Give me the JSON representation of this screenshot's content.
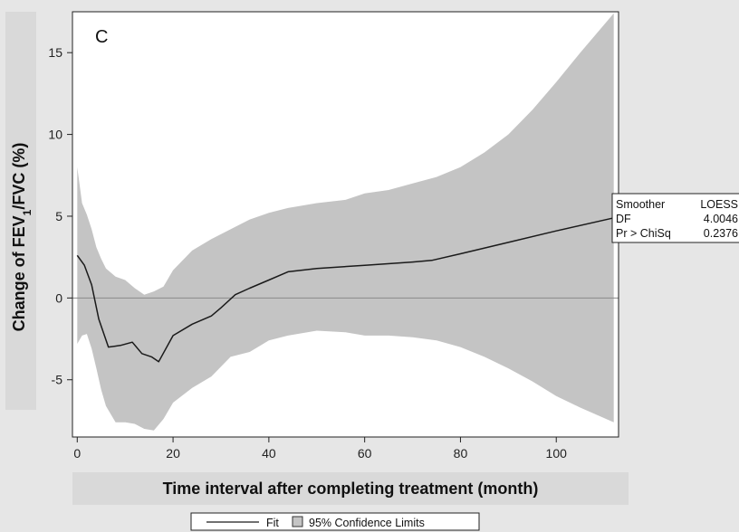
{
  "chart_data": {
    "type": "line",
    "panel_label": "C",
    "xlabel": "Time interval after completing treatment (month)",
    "ylabel_parts": {
      "before": "Change of FEV",
      "sub": "1",
      "after": "/FVC (%)"
    },
    "xlim": [
      -1,
      113
    ],
    "ylim": [
      -8.5,
      17.5
    ],
    "x_ticks": [
      0,
      20,
      40,
      60,
      80,
      100
    ],
    "y_ticks": [
      -5,
      0,
      5,
      10,
      15
    ],
    "reference_line_y": 0,
    "series": [
      {
        "name": "Fit",
        "kind": "line",
        "color": "#1a1a1a",
        "x": [
          0,
          1.5,
          3,
          4.5,
          6.5,
          9,
          11.5,
          13.5,
          15.5,
          17,
          20,
          24,
          28,
          30,
          33,
          36,
          40,
          44,
          50,
          60,
          70,
          74,
          80,
          90,
          100,
          112
        ],
        "y": [
          2.6,
          2.0,
          0.8,
          -1.3,
          -3.0,
          -2.9,
          -2.7,
          -3.4,
          -3.6,
          -3.9,
          -2.3,
          -1.6,
          -1.1,
          -0.6,
          0.2,
          0.6,
          1.1,
          1.6,
          1.8,
          2.0,
          2.2,
          2.3,
          2.7,
          3.4,
          4.1,
          4.9
        ]
      },
      {
        "name": "95% Confidence Limits",
        "kind": "band",
        "color": "#c4c4c4",
        "x": [
          0,
          1,
          2,
          3,
          4,
          5,
          6,
          8,
          10,
          12,
          14,
          16,
          18,
          20,
          24,
          28,
          32,
          36,
          40,
          44,
          50,
          56,
          60,
          65,
          70,
          75,
          80,
          85,
          90,
          95,
          100,
          105,
          112
        ],
        "upper": [
          8.0,
          5.8,
          5.1,
          4.2,
          3.1,
          2.4,
          1.8,
          1.3,
          1.1,
          0.6,
          0.2,
          0.4,
          0.7,
          1.7,
          2.9,
          3.6,
          4.2,
          4.8,
          5.2,
          5.5,
          5.8,
          6.0,
          6.4,
          6.6,
          7.0,
          7.4,
          8.0,
          8.9,
          10.0,
          11.5,
          13.2,
          15.0,
          17.4
        ],
        "lower": [
          -2.8,
          -2.3,
          -2.2,
          -3.1,
          -4.3,
          -5.6,
          -6.6,
          -7.6,
          -7.6,
          -7.7,
          -8.0,
          -8.1,
          -7.4,
          -6.4,
          -5.5,
          -4.8,
          -3.6,
          -3.3,
          -2.6,
          -2.3,
          -2.0,
          -2.1,
          -2.3,
          -2.3,
          -2.4,
          -2.6,
          -3.0,
          -3.6,
          -4.3,
          -5.1,
          -6.0,
          -6.7,
          -7.6
        ]
      }
    ],
    "stats": {
      "rows": [
        {
          "label": "Smoother",
          "value": "LOESS"
        },
        {
          "label": "DF",
          "value": "4.0046"
        },
        {
          "label": "Pr > ChiSq",
          "value": "0.2376"
        }
      ]
    },
    "legend": {
      "position": "bottom",
      "items": [
        {
          "label": "Fit",
          "symbol": "line"
        },
        {
          "label": "95% Confidence Limits",
          "symbol": "box"
        }
      ]
    },
    "colors": {
      "page_background": "#e6e6e6",
      "plot_background": "#ffffff",
      "band": "#c4c4c4",
      "fit_line": "#1a1a1a",
      "reference_line": "#8a8a8a"
    }
  }
}
